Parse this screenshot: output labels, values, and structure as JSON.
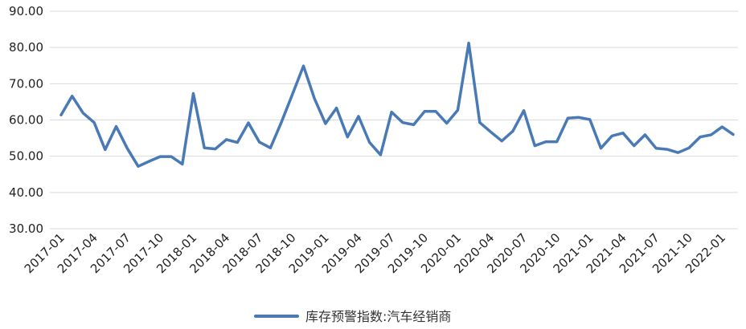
{
  "chart_data": {
    "type": "line",
    "title": "",
    "xlabel": "",
    "ylabel": "",
    "ylim": [
      30,
      90
    ],
    "y_ticks": [
      "30.00",
      "40.00",
      "50.00",
      "60.00",
      "70.00",
      "80.00",
      "90.00"
    ],
    "grid": "horizontal",
    "legend_position": "bottom",
    "x_tick_labels": [
      "2017-01",
      "2017-04",
      "2017-07",
      "2017-10",
      "2018-01",
      "2018-04",
      "2018-07",
      "2018-10",
      "2019-01",
      "2019-04",
      "2019-07",
      "2019-10",
      "2020-01",
      "2020-04",
      "2020-07",
      "2020-10",
      "2021-01",
      "2021-04",
      "2021-07",
      "2021-10",
      "2022-01"
    ],
    "x": [
      "2017-01",
      "2017-02",
      "2017-03",
      "2017-04",
      "2017-05",
      "2017-06",
      "2017-07",
      "2017-08",
      "2017-09",
      "2017-10",
      "2017-11",
      "2017-12",
      "2018-01",
      "2018-02",
      "2018-03",
      "2018-04",
      "2018-05",
      "2018-06",
      "2018-07",
      "2018-08",
      "2018-09",
      "2018-10",
      "2018-11",
      "2018-12",
      "2019-01",
      "2019-02",
      "2019-03",
      "2019-04",
      "2019-05",
      "2019-06",
      "2019-07",
      "2019-08",
      "2019-09",
      "2019-10",
      "2019-11",
      "2019-12",
      "2020-01",
      "2020-02",
      "2020-03",
      "2020-04",
      "2020-05",
      "2020-06",
      "2020-07",
      "2020-08",
      "2020-09",
      "2020-10",
      "2020-11",
      "2020-12",
      "2021-01",
      "2021-02",
      "2021-03",
      "2021-04",
      "2021-05",
      "2021-06",
      "2021-07",
      "2021-08",
      "2021-09",
      "2021-10",
      "2021-11",
      "2021-12",
      "2022-01",
      "2022-02"
    ],
    "series": [
      {
        "name": "库存预警指数:汽车经销商",
        "color": "#4a7ab5",
        "values": [
          61.4,
          66.6,
          61.9,
          59.3,
          51.8,
          58.2,
          52.2,
          47.2,
          48.6,
          49.9,
          49.9,
          47.8,
          67.3,
          52.3,
          52.0,
          54.6,
          53.8,
          59.2,
          53.9,
          52.3,
          59.4,
          67.1,
          74.9,
          65.9,
          59.0,
          63.3,
          55.3,
          61.0,
          53.8,
          50.4,
          62.2,
          59.3,
          58.7,
          62.4,
          62.4,
          59.1,
          62.7,
          81.2,
          59.3,
          56.7,
          54.2,
          56.9,
          62.6,
          52.9,
          54.0,
          54.0,
          60.5,
          60.7,
          60.1,
          52.2,
          55.6,
          56.4,
          52.9,
          55.9,
          52.2,
          51.9,
          51.0,
          52.3,
          55.3,
          55.9,
          58.1,
          56.0
        ]
      }
    ]
  }
}
